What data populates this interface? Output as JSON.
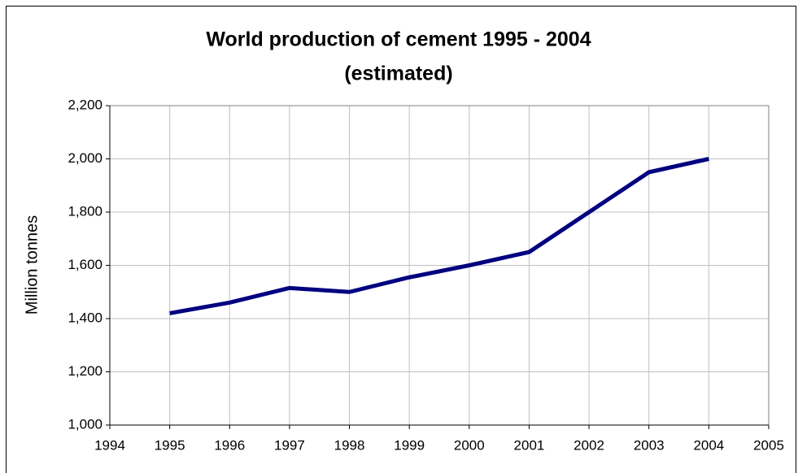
{
  "chart_data": {
    "type": "line",
    "title": [
      "World production of cement 1995 - 2004",
      "(estimated)"
    ],
    "y_label": "Million tonnes",
    "x": [
      1995,
      1996,
      1997,
      1998,
      1999,
      2000,
      2001,
      2002,
      2003,
      2004
    ],
    "series": [
      {
        "name": "World production",
        "color": "#000080",
        "values": [
          1420,
          1460,
          1515,
          1500,
          1555,
          1600,
          1650,
          1800,
          1950,
          2000
        ]
      }
    ],
    "xlim": [
      1994,
      2005
    ],
    "xticks": [
      1994,
      1995,
      1996,
      1997,
      1998,
      1999,
      2000,
      2001,
      2002,
      2003,
      2004,
      2005
    ],
    "ylim": [
      1000,
      2200
    ],
    "yticks": [
      {
        "value": 1000,
        "label": "1,000"
      },
      {
        "value": 1200,
        "label": "1,200"
      },
      {
        "value": 1400,
        "label": "1,400"
      },
      {
        "value": 1600,
        "label": "1,600"
      },
      {
        "value": 1800,
        "label": "1,800"
      },
      {
        "value": 2000,
        "label": "2,000"
      },
      {
        "value": 2200,
        "label": "2,200"
      }
    ],
    "grid": true
  }
}
